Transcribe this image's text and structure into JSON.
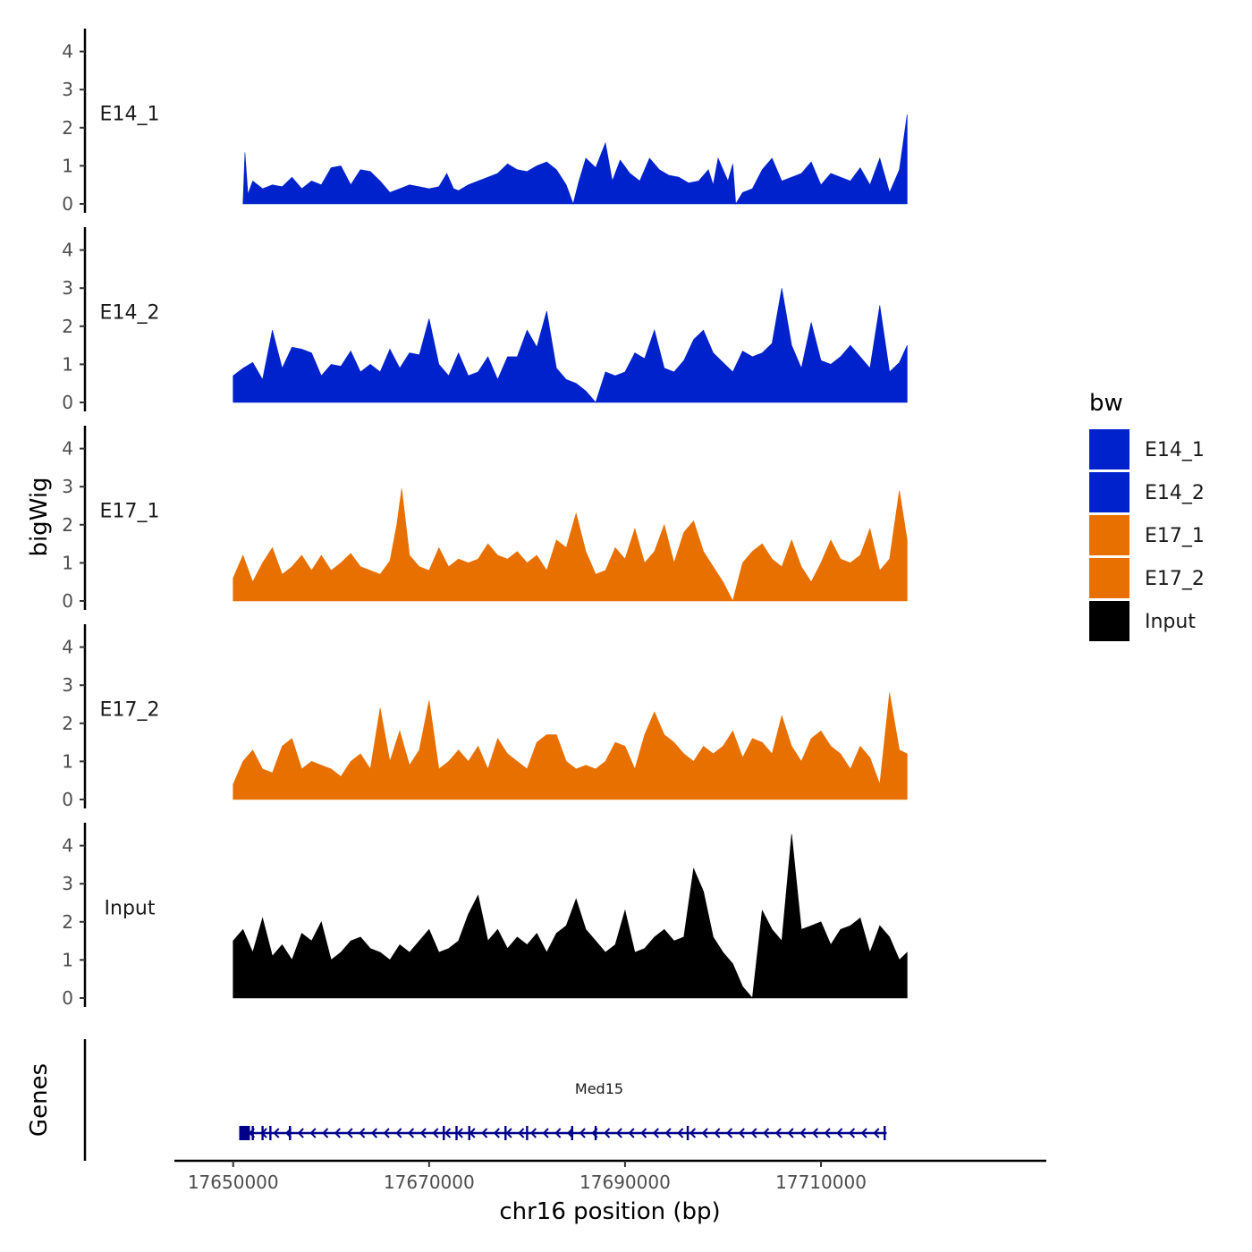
{
  "chart_data": {
    "type": "area",
    "title": "",
    "ylabel": "bigWig",
    "genes_label": "Genes",
    "xlabel": "chr16 position (bp)",
    "xlim": [
      17644000,
      17733000
    ],
    "x_ticks": [
      17650000,
      17670000,
      17690000,
      17710000
    ],
    "x_tick_labels": [
      "17650000",
      "17670000",
      "17690000",
      "17710000"
    ],
    "ylim": [
      0,
      4.5
    ],
    "y_ticks": [
      0,
      1,
      2,
      3,
      4
    ],
    "y_tick_labels": [
      "0",
      "1",
      "2",
      "3",
      "4"
    ],
    "legend": {
      "title": "bw",
      "position": "right",
      "entries": [
        {
          "label": "E14_1",
          "color": "#0022cc"
        },
        {
          "label": "E14_2",
          "color": "#0022cc"
        },
        {
          "label": "E17_1",
          "color": "#e87000"
        },
        {
          "label": "E17_2",
          "color": "#e87000"
        },
        {
          "label": "Input",
          "color": "#000000"
        }
      ]
    },
    "series": [
      {
        "name": "E14_1",
        "color": "#0022cc",
        "x": [
          17651000,
          17651200,
          17651500,
          17652000,
          17653000,
          17654000,
          17655000,
          17656000,
          17657000,
          17658000,
          17659000,
          17660000,
          17661000,
          17662000,
          17663000,
          17664000,
          17665000,
          17666000,
          17667000,
          17668000,
          17669000,
          17670000,
          17671000,
          17671800,
          17672500,
          17673000,
          17674000,
          17675000,
          17676000,
          17677000,
          17678000,
          17679000,
          17680000,
          17681000,
          17682000,
          17683000,
          17684000,
          17684700,
          17685300,
          17686000,
          17687000,
          17688000,
          17688700,
          17689500,
          17690500,
          17691500,
          17692500,
          17693500,
          17694500,
          17695500,
          17696500,
          17697500,
          17698500,
          17699000,
          17699500,
          17700000,
          17700500,
          17701000,
          17701300,
          17702000,
          17703000,
          17704000,
          17705000,
          17706000,
          17707000,
          17708000,
          17709000,
          17710000,
          17711000,
          17712000,
          17713000,
          17714000,
          17715000,
          17716000,
          17717000,
          17718000,
          17718800
        ],
        "y": [
          0,
          1.35,
          0.25,
          0.6,
          0.4,
          0.5,
          0.45,
          0.7,
          0.4,
          0.6,
          0.5,
          0.95,
          1.0,
          0.5,
          0.9,
          0.85,
          0.6,
          0.3,
          0.4,
          0.5,
          0.45,
          0.4,
          0.45,
          0.8,
          0.4,
          0.35,
          0.5,
          0.6,
          0.7,
          0.8,
          1.05,
          0.9,
          0.85,
          1.0,
          1.1,
          0.9,
          0.5,
          0,
          0.6,
          1.2,
          0.95,
          1.6,
          0.6,
          1.15,
          0.8,
          0.6,
          1.2,
          0.9,
          0.75,
          0.7,
          0.55,
          0.6,
          0.9,
          0.5,
          1.2,
          0.9,
          0.6,
          1.05,
          0,
          0.3,
          0.4,
          0.9,
          1.2,
          0.6,
          0.7,
          0.8,
          1.1,
          0.5,
          0.8,
          0.7,
          0.6,
          0.95,
          0.5,
          1.2,
          0.3,
          0.9,
          2.35
        ]
      },
      {
        "name": "E14_2",
        "color": "#0022cc",
        "x": [
          17650000,
          17651000,
          17652000,
          17653000,
          17654000,
          17655000,
          17656000,
          17657000,
          17658000,
          17659000,
          17660000,
          17661000,
          17662000,
          17663000,
          17664000,
          17665000,
          17666000,
          17667000,
          17668000,
          17669000,
          17670000,
          17671000,
          17672000,
          17673000,
          17674000,
          17675000,
          17676000,
          17677000,
          17678000,
          17679000,
          17680000,
          17681000,
          17682000,
          17683000,
          17684000,
          17685000,
          17686000,
          17687000,
          17688000,
          17689000,
          17690000,
          17691000,
          17692000,
          17693000,
          17694000,
          17695000,
          17696000,
          17697000,
          17698000,
          17699000,
          17700000,
          17701000,
          17702000,
          17703000,
          17704000,
          17705000,
          17706000,
          17707000,
          17708000,
          17709000,
          17710000,
          17711000,
          17712000,
          17713000,
          17714000,
          17715000,
          17716000,
          17717000,
          17718000,
          17718800
        ],
        "y": [
          0.7,
          0.9,
          1.05,
          0.6,
          1.9,
          0.9,
          1.45,
          1.4,
          1.3,
          0.7,
          1.0,
          0.95,
          1.35,
          0.8,
          1.0,
          0.8,
          1.4,
          0.9,
          1.3,
          1.25,
          2.2,
          1.0,
          0.7,
          1.3,
          0.7,
          0.8,
          1.2,
          0.6,
          1.2,
          1.2,
          1.9,
          1.45,
          2.4,
          0.9,
          0.6,
          0.5,
          0.3,
          0,
          0.8,
          0.7,
          0.8,
          1.3,
          1.15,
          1.9,
          0.9,
          0.8,
          1.1,
          1.65,
          1.9,
          1.3,
          1.05,
          0.8,
          1.35,
          1.2,
          1.3,
          1.55,
          3.0,
          1.5,
          0.9,
          2.1,
          1.1,
          1.0,
          1.2,
          1.5,
          1.2,
          0.9,
          2.55,
          0.8,
          1.05,
          1.5
        ]
      },
      {
        "name": "E17_1",
        "color": "#e87000",
        "x": [
          17650000,
          17651000,
          17652000,
          17653000,
          17654000,
          17655000,
          17656000,
          17657000,
          17658000,
          17659000,
          17660000,
          17661000,
          17662000,
          17663000,
          17664000,
          17665000,
          17666000,
          17666700,
          17667200,
          17668000,
          17669000,
          17670000,
          17671000,
          17672000,
          17673000,
          17674000,
          17675000,
          17676000,
          17677000,
          17678000,
          17679000,
          17680000,
          17681000,
          17682000,
          17683000,
          17684000,
          17685000,
          17686000,
          17687000,
          17688000,
          17689000,
          17690000,
          17691000,
          17692000,
          17693000,
          17694000,
          17695000,
          17696000,
          17697000,
          17698000,
          17699000,
          17700000,
          17701000,
          17702000,
          17703000,
          17704000,
          17705000,
          17706000,
          17707000,
          17708000,
          17709000,
          17710000,
          17711000,
          17712000,
          17713000,
          17714000,
          17715000,
          17716000,
          17717000,
          17718000,
          17718800
        ],
        "y": [
          0.6,
          1.2,
          0.5,
          1.0,
          1.4,
          0.7,
          0.9,
          1.2,
          0.8,
          1.2,
          0.8,
          1.0,
          1.25,
          0.9,
          0.8,
          0.7,
          1.05,
          2.0,
          2.95,
          1.2,
          0.9,
          0.8,
          1.4,
          0.9,
          1.1,
          1.0,
          1.1,
          1.5,
          1.2,
          1.1,
          1.3,
          1.0,
          1.2,
          0.8,
          1.6,
          1.4,
          2.3,
          1.3,
          0.7,
          0.8,
          1.4,
          1.1,
          1.9,
          1.0,
          1.3,
          2.0,
          1.0,
          1.8,
          2.1,
          1.3,
          0.9,
          0.5,
          0,
          1.0,
          1.3,
          1.5,
          1.1,
          0.9,
          1.6,
          0.9,
          0.5,
          1.0,
          1.6,
          1.1,
          1.0,
          1.2,
          1.9,
          0.8,
          1.1,
          2.9,
          1.6
        ]
      },
      {
        "name": "E17_2",
        "color": "#e87000",
        "x": [
          17650000,
          17651000,
          17652000,
          17653000,
          17654000,
          17655000,
          17656000,
          17657000,
          17658000,
          17659000,
          17660000,
          17661000,
          17662000,
          17663000,
          17664000,
          17665000,
          17666000,
          17667000,
          17668000,
          17669000,
          17670000,
          17671000,
          17672000,
          17673000,
          17674000,
          17675000,
          17676000,
          17677000,
          17678000,
          17679000,
          17680000,
          17681000,
          17682000,
          17683000,
          17684000,
          17685000,
          17686000,
          17687000,
          17688000,
          17689000,
          17690000,
          17691000,
          17692000,
          17693000,
          17694000,
          17695000,
          17696000,
          17697000,
          17698000,
          17699000,
          17700000,
          17701000,
          17702000,
          17703000,
          17704000,
          17705000,
          17706000,
          17707000,
          17708000,
          17709000,
          17710000,
          17711000,
          17712000,
          17713000,
          17714000,
          17715000,
          17716000,
          17717000,
          17718000,
          17718800
        ],
        "y": [
          0.4,
          1.0,
          1.3,
          0.8,
          0.7,
          1.4,
          1.6,
          0.8,
          1.0,
          0.9,
          0.8,
          0.6,
          1.0,
          1.2,
          0.8,
          2.4,
          1.0,
          1.8,
          0.9,
          1.3,
          2.6,
          0.8,
          1.0,
          1.3,
          1.0,
          1.4,
          0.8,
          1.6,
          1.2,
          1.0,
          0.8,
          1.5,
          1.7,
          1.7,
          1.0,
          0.8,
          0.9,
          0.8,
          1.0,
          1.5,
          1.4,
          0.8,
          1.7,
          2.3,
          1.7,
          1.5,
          1.2,
          1.0,
          1.4,
          1.2,
          1.4,
          1.8,
          1.1,
          1.6,
          1.5,
          1.2,
          2.2,
          1.4,
          1.0,
          1.6,
          1.8,
          1.4,
          1.2,
          0.8,
          1.4,
          1.1,
          0.4,
          2.8,
          1.3,
          1.2
        ]
      },
      {
        "name": "Input",
        "color": "#000000",
        "x": [
          17650000,
          17651000,
          17652000,
          17653000,
          17654000,
          17655000,
          17656000,
          17657000,
          17658000,
          17659000,
          17660000,
          17661000,
          17662000,
          17663000,
          17664000,
          17665000,
          17666000,
          17667000,
          17668000,
          17669000,
          17670000,
          17671000,
          17672000,
          17673000,
          17674000,
          17675000,
          17676000,
          17677000,
          17678000,
          17679000,
          17680000,
          17681000,
          17682000,
          17683000,
          17684000,
          17685000,
          17686000,
          17687000,
          17688000,
          17689000,
          17690000,
          17691000,
          17692000,
          17693000,
          17694000,
          17695000,
          17696000,
          17697000,
          17698000,
          17699000,
          17700000,
          17701000,
          17702000,
          17703000,
          17704000,
          17705000,
          17706000,
          17707000,
          17708000,
          17709000,
          17710000,
          17711000,
          17712000,
          17713000,
          17714000,
          17715000,
          17716000,
          17717000,
          17718000,
          17718800
        ],
        "y": [
          1.5,
          1.8,
          1.2,
          2.1,
          1.1,
          1.4,
          1.0,
          1.7,
          1.5,
          2.0,
          1.0,
          1.2,
          1.5,
          1.6,
          1.3,
          1.2,
          1.0,
          1.4,
          1.2,
          1.5,
          1.8,
          1.2,
          1.3,
          1.5,
          2.2,
          2.7,
          1.5,
          1.8,
          1.3,
          1.6,
          1.4,
          1.7,
          1.2,
          1.7,
          1.9,
          2.6,
          1.8,
          1.5,
          1.2,
          1.4,
          2.3,
          1.2,
          1.3,
          1.6,
          1.8,
          1.5,
          1.6,
          3.4,
          2.8,
          1.6,
          1.2,
          0.9,
          0.3,
          0,
          2.3,
          1.8,
          1.5,
          4.3,
          1.8,
          1.9,
          2.0,
          1.4,
          1.8,
          1.9,
          2.1,
          1.2,
          1.9,
          1.6,
          1.0,
          1.2
        ]
      }
    ],
    "gene": {
      "name": "Med15",
      "start": 17650800,
      "end": 17716700,
      "strand": "-",
      "exons": [
        17651500,
        17652000,
        17653000,
        17653800,
        17655800,
        17671500,
        17672800,
        17674100,
        17677800,
        17680000,
        17684600,
        17687000,
        17696400,
        17716500
      ]
    }
  }
}
